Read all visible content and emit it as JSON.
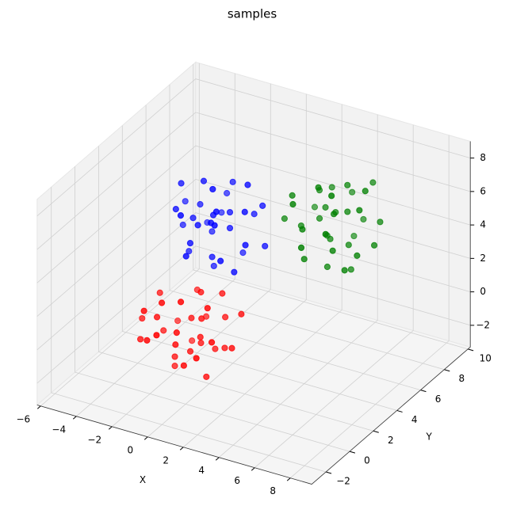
{
  "chart_data": {
    "type": "scatter3d",
    "title": "samples",
    "xlabel": "X",
    "ylabel": "Y",
    "xlim": [
      -6.2,
      9.2
    ],
    "ylim": [
      -3.2,
      10.2
    ],
    "zlim": [
      -3.3,
      9.0
    ],
    "xticks": [
      {
        "value": -6,
        "label": "−6"
      },
      {
        "value": -4,
        "label": "−4"
      },
      {
        "value": -2,
        "label": "−2"
      },
      0,
      2,
      4,
      6,
      8
    ],
    "yticks": [
      {
        "value": -2,
        "label": "−2"
      },
      0,
      2,
      4,
      6,
      8,
      10
    ],
    "zticks": [
      {
        "value": -2,
        "label": "−2"
      },
      0,
      2,
      4,
      6,
      8
    ],
    "grid": true,
    "series": [
      {
        "color": "#ff0000",
        "x": [
          0.3,
          -1.5,
          1.1,
          -0.4,
          2.0,
          -2.1,
          0.7,
          -0.9,
          1.6,
          0.0,
          -1.2,
          0.9,
          -0.3,
          1.3,
          -1.8,
          0.5,
          -0.7,
          2.4,
          -0.1,
          1.0,
          -2.5,
          0.2,
          -1.0,
          1.8,
          -0.6,
          0.8,
          -1.4,
          0.4,
          -0.2,
          1.5,
          -1.7,
          0.1,
          2.2,
          -0.8,
          0.6
        ],
        "y": [
          -1.2,
          0.4,
          1.7,
          -0.3,
          -0.8,
          1.0,
          0.2,
          -1.9,
          0.9,
          1.3,
          -0.6,
          -1.5,
          2.2,
          -0.1,
          -1.1,
          0.6,
          1.6,
          0.3,
          -2.3,
          1.0,
          0.1,
          -0.7,
          2.5,
          -1.8,
          0.0,
          1.9,
          -1.4,
          -0.2,
          0.8,
          -0.5,
          1.9,
          -1.0,
          1.4,
          -0.8,
          0.4
        ],
        "z": [
          1.8,
          0.4,
          1.2,
          -0.4,
          1.5,
          2.1,
          0.8,
          1.4,
          0.0,
          2.6,
          1.9,
          0.2,
          0.5,
          2.9,
          0.7,
          1.6,
          -0.7,
          0.6,
          2.2,
          -0.3,
          1.0,
          3.3,
          1.7,
          1.1,
          -1.2,
          2.4,
          2.7,
          0.1,
          1.3,
          -0.9,
          0.0,
          0.9,
          1.9,
          3.0,
          0.3
        ]
      },
      {
        "color": "#0000ff",
        "x": [
          -1.7,
          -0.1,
          1.2,
          -0.8,
          -1.3,
          0.5,
          -0.3,
          -2.4,
          0.4,
          0.8,
          -1.1,
          -2.0,
          1.7,
          -0.6,
          -1.6,
          0.1,
          1.1,
          -0.2,
          -2.8,
          0.5,
          -0.4,
          -1.2,
          2.0,
          -2.3,
          -0.5,
          1.4,
          -1.9,
          -0.7,
          0.3,
          -1.0,
          1.4,
          -1.5,
          0.9,
          -1.3,
          -0.1
        ],
        "y": [
          3.8,
          2.4,
          3.2,
          1.6,
          3.5,
          4.1,
          2.8,
          3.4,
          2.0,
          4.6,
          3.9,
          2.2,
          2.5,
          4.9,
          2.7,
          3.6,
          1.3,
          2.6,
          4.2,
          1.7,
          3.0,
          5.3,
          3.7,
          3.1,
          0.8,
          4.4,
          4.7,
          2.1,
          3.3,
          1.1,
          2.0,
          2.9,
          3.9,
          5.0,
          2.3
        ],
        "z": [
          5.8,
          4.0,
          6.6,
          5.1,
          7.5,
          3.4,
          6.2,
          4.6,
          7.1,
          5.5,
          4.3,
          6.4,
          5.2,
          6.8,
          3.7,
          6.0,
          4.8,
          7.9,
          5.4,
          6.5,
          3.0,
          5.7,
          4.5,
          7.3,
          4.9,
          6.3,
          4.1,
          5.9,
          5.3,
          7.0,
          3.8,
          5.6,
          7.7,
          4.7,
          6.1
        ]
      },
      {
        "color": "#008000",
        "x": [
          5.3,
          3.9,
          4.7,
          3.1,
          5.0,
          5.6,
          4.3,
          4.9,
          3.5,
          6.1,
          5.4,
          3.7,
          4.0,
          6.4,
          4.2,
          5.1,
          2.8,
          4.1,
          5.7,
          3.2,
          4.5,
          6.8,
          5.2,
          4.6,
          2.3,
          5.9,
          6.2,
          3.6,
          4.8,
          2.6,
          3.5,
          4.4,
          5.4,
          6.5,
          3.8
        ],
        "y": [
          5.8,
          4.0,
          6.6,
          5.1,
          7.5,
          3.4,
          6.2,
          4.6,
          7.1,
          5.5,
          4.3,
          6.4,
          5.2,
          6.8,
          3.7,
          6.0,
          4.8,
          7.9,
          5.4,
          6.5,
          3.0,
          5.7,
          4.5,
          7.3,
          4.9,
          6.3,
          4.1,
          5.9,
          5.3,
          7.0,
          3.8,
          5.6,
          7.7,
          4.7,
          6.1
        ],
        "z": [
          4.3,
          5.9,
          7.2,
          5.2,
          4.7,
          6.5,
          5.7,
          3.6,
          6.4,
          6.8,
          4.9,
          4.0,
          7.7,
          5.4,
          4.4,
          6.1,
          7.1,
          5.8,
          3.2,
          6.5,
          5.6,
          4.8,
          8.0,
          3.7,
          5.5,
          7.4,
          4.1,
          5.3,
          6.3,
          5.0,
          7.4,
          4.5,
          6.9,
          4.7,
          5.9
        ]
      }
    ]
  }
}
